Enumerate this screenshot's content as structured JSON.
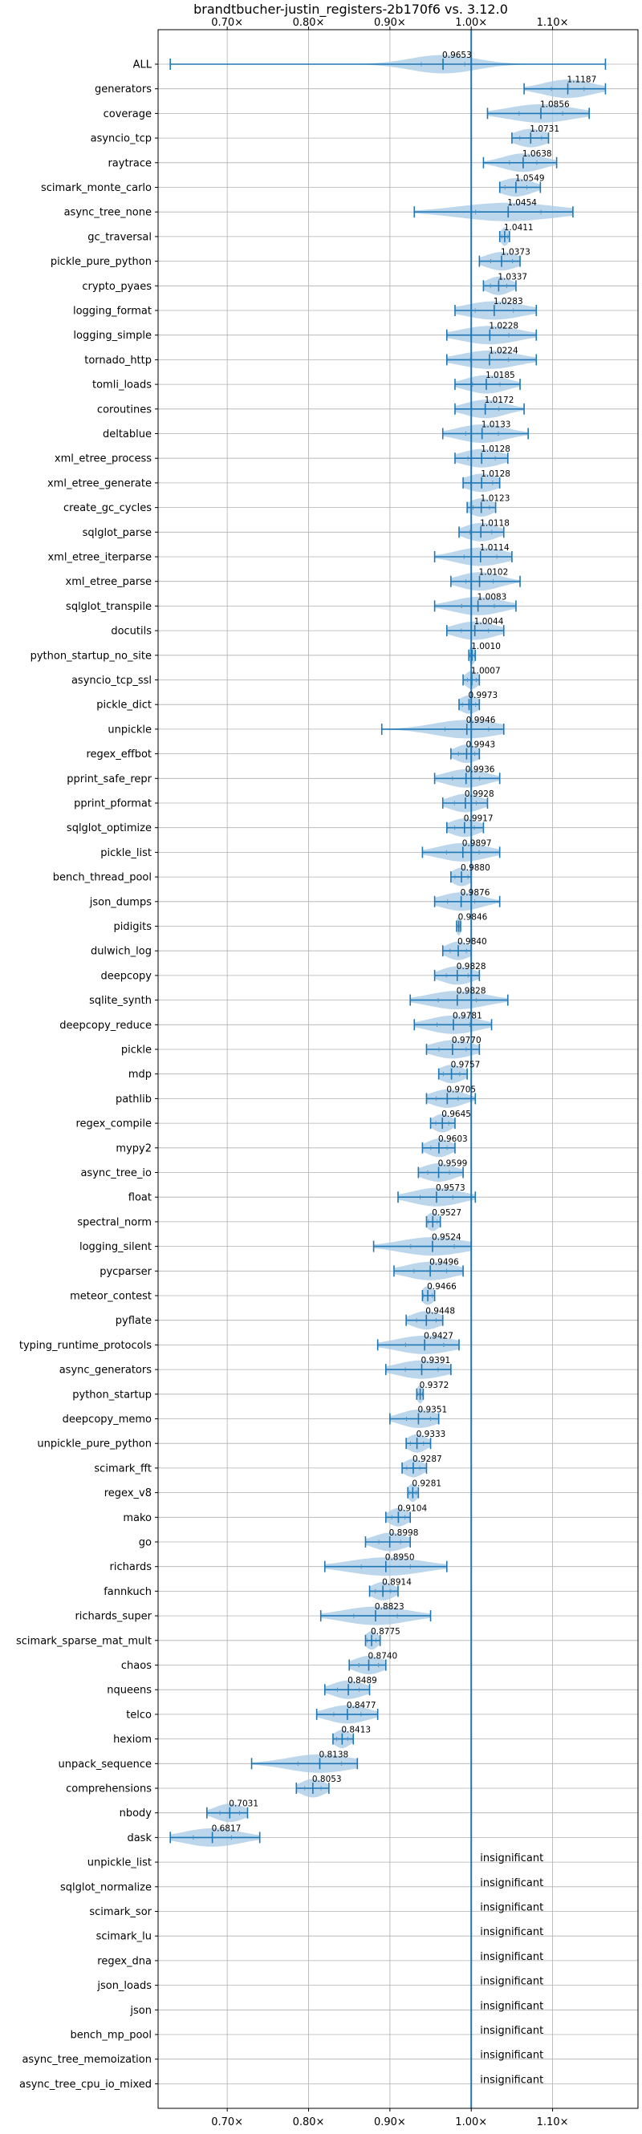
{
  "chart_data": {
    "type": "violin",
    "title": "brandtbucher-justin_registers-2b170f6 vs. 3.12.0",
    "xlim": [
      0.615,
      1.205
    ],
    "x_ticks": [
      0.7,
      0.8,
      0.9,
      1.0,
      1.1
    ],
    "x_tick_labels": [
      "0.70×",
      "0.80×",
      "0.90×",
      "1.00×",
      "1.10×"
    ],
    "reference_line": 1.0,
    "grid": true,
    "colors": {
      "line": "#1f77b4",
      "violin": "#a6c8e6",
      "grid": "#b0b0b0"
    },
    "benchmarks": [
      {
        "name": "ALL",
        "value": 0.9653,
        "label": "0.9653",
        "min": 0.63,
        "max": 1.165,
        "spread": 0.04
      },
      {
        "name": "generators",
        "value": 1.1187,
        "label": "1.1187",
        "min": 1.065,
        "max": 1.165,
        "spread": 0.03
      },
      {
        "name": "coverage",
        "value": 1.0856,
        "label": "1.0856",
        "min": 1.02,
        "max": 1.145,
        "spread": 0.04
      },
      {
        "name": "asyncio_tcp",
        "value": 1.0731,
        "label": "1.0731",
        "min": 1.05,
        "max": 1.095,
        "spread": 0.02
      },
      {
        "name": "raytrace",
        "value": 1.0638,
        "label": "1.0638",
        "min": 1.015,
        "max": 1.105,
        "spread": 0.025
      },
      {
        "name": "scimark_monte_carlo",
        "value": 1.0549,
        "label": "1.0549",
        "min": 1.035,
        "max": 1.085,
        "spread": 0.02
      },
      {
        "name": "async_tree_none",
        "value": 1.0454,
        "label": "1.0454",
        "min": 0.93,
        "max": 1.125,
        "spread": 0.06
      },
      {
        "name": "gc_traversal",
        "value": 1.0411,
        "label": "1.0411",
        "min": 1.035,
        "max": 1.047,
        "spread": 0.005
      },
      {
        "name": "pickle_pure_python",
        "value": 1.0373,
        "label": "1.0373",
        "min": 1.01,
        "max": 1.06,
        "spread": 0.02
      },
      {
        "name": "crypto_pyaes",
        "value": 1.0337,
        "label": "1.0337",
        "min": 1.015,
        "max": 1.055,
        "spread": 0.015
      },
      {
        "name": "logging_format",
        "value": 1.0283,
        "label": "1.0283",
        "min": 0.98,
        "max": 1.08,
        "spread": 0.035
      },
      {
        "name": "logging_simple",
        "value": 1.0228,
        "label": "1.0228",
        "min": 0.97,
        "max": 1.08,
        "spread": 0.035
      },
      {
        "name": "tornado_http",
        "value": 1.0224,
        "label": "1.0224",
        "min": 0.97,
        "max": 1.08,
        "spread": 0.035
      },
      {
        "name": "tomli_loads",
        "value": 1.0185,
        "label": "1.0185",
        "min": 0.98,
        "max": 1.06,
        "spread": 0.025
      },
      {
        "name": "coroutines",
        "value": 1.0172,
        "label": "1.0172",
        "min": 0.98,
        "max": 1.065,
        "spread": 0.025
      },
      {
        "name": "deltablue",
        "value": 1.0133,
        "label": "1.0133",
        "min": 0.965,
        "max": 1.07,
        "spread": 0.03
      },
      {
        "name": "xml_etree_process",
        "value": 1.0128,
        "label": "1.0128",
        "min": 0.98,
        "max": 1.045,
        "spread": 0.025
      },
      {
        "name": "xml_etree_generate",
        "value": 1.0128,
        "label": "1.0128",
        "min": 0.99,
        "max": 1.035,
        "spread": 0.02
      },
      {
        "name": "create_gc_cycles",
        "value": 1.0123,
        "label": "1.0123",
        "min": 0.995,
        "max": 1.03,
        "spread": 0.015
      },
      {
        "name": "sqlglot_parse",
        "value": 1.0118,
        "label": "1.0118",
        "min": 0.985,
        "max": 1.04,
        "spread": 0.02
      },
      {
        "name": "xml_etree_iterparse",
        "value": 1.0114,
        "label": "1.0114",
        "min": 0.955,
        "max": 1.05,
        "spread": 0.03
      },
      {
        "name": "xml_etree_parse",
        "value": 1.0102,
        "label": "1.0102",
        "min": 0.975,
        "max": 1.06,
        "spread": 0.025
      },
      {
        "name": "sqlglot_transpile",
        "value": 1.0083,
        "label": "1.0083",
        "min": 0.955,
        "max": 1.055,
        "spread": 0.03
      },
      {
        "name": "docutils",
        "value": 1.0044,
        "label": "1.0044",
        "min": 0.97,
        "max": 1.04,
        "spread": 0.025
      },
      {
        "name": "python_startup_no_site",
        "value": 1.001,
        "label": "1.0010",
        "min": 0.997,
        "max": 1.005,
        "spread": 0.004
      },
      {
        "name": "asyncio_tcp_ssl",
        "value": 1.0007,
        "label": "1.0007",
        "min": 0.99,
        "max": 1.01,
        "spread": 0.008
      },
      {
        "name": "pickle_dict",
        "value": 0.9973,
        "label": "0.9973",
        "min": 0.985,
        "max": 1.01,
        "spread": 0.012
      },
      {
        "name": "unpickle",
        "value": 0.9946,
        "label": "0.9946",
        "min": 0.89,
        "max": 1.04,
        "spread": 0.04
      },
      {
        "name": "regex_effbot",
        "value": 0.9943,
        "label": "0.9943",
        "min": 0.975,
        "max": 1.01,
        "spread": 0.015
      },
      {
        "name": "pprint_safe_repr",
        "value": 0.9936,
        "label": "0.9936",
        "min": 0.955,
        "max": 1.035,
        "spread": 0.025
      },
      {
        "name": "pprint_pformat",
        "value": 0.9928,
        "label": "0.9928",
        "min": 0.965,
        "max": 1.02,
        "spread": 0.02
      },
      {
        "name": "sqlglot_optimize",
        "value": 0.9917,
        "label": "0.9917",
        "min": 0.97,
        "max": 1.015,
        "spread": 0.018
      },
      {
        "name": "pickle_list",
        "value": 0.9897,
        "label": "0.9897",
        "min": 0.94,
        "max": 1.035,
        "spread": 0.03
      },
      {
        "name": "bench_thread_pool",
        "value": 0.988,
        "label": "0.9880",
        "min": 0.975,
        "max": 1.0,
        "spread": 0.012
      },
      {
        "name": "json_dumps",
        "value": 0.9876,
        "label": "0.9876",
        "min": 0.955,
        "max": 1.035,
        "spread": 0.025
      },
      {
        "name": "pidigits",
        "value": 0.9846,
        "label": "0.9846",
        "min": 0.982,
        "max": 0.987,
        "spread": 0.003
      },
      {
        "name": "dulwich_log",
        "value": 0.984,
        "label": "0.9840",
        "min": 0.965,
        "max": 1.0,
        "spread": 0.015
      },
      {
        "name": "deepcopy",
        "value": 0.9828,
        "label": "0.9828",
        "min": 0.955,
        "max": 1.01,
        "spread": 0.02
      },
      {
        "name": "sqlite_synth",
        "value": 0.9828,
        "label": "0.9828",
        "min": 0.925,
        "max": 1.045,
        "spread": 0.035
      },
      {
        "name": "deepcopy_reduce",
        "value": 0.9781,
        "label": "0.9781",
        "min": 0.93,
        "max": 1.025,
        "spread": 0.03
      },
      {
        "name": "pickle",
        "value": 0.977,
        "label": "0.9770",
        "min": 0.945,
        "max": 1.01,
        "spread": 0.025
      },
      {
        "name": "mdp",
        "value": 0.9757,
        "label": "0.9757",
        "min": 0.96,
        "max": 0.995,
        "spread": 0.015
      },
      {
        "name": "pathlib",
        "value": 0.9705,
        "label": "0.9705",
        "min": 0.945,
        "max": 1.005,
        "spread": 0.02
      },
      {
        "name": "regex_compile",
        "value": 0.9645,
        "label": "0.9645",
        "min": 0.95,
        "max": 0.98,
        "spread": 0.012
      },
      {
        "name": "mypy2",
        "value": 0.9603,
        "label": "0.9603",
        "min": 0.94,
        "max": 0.98,
        "spread": 0.015
      },
      {
        "name": "async_tree_io",
        "value": 0.9599,
        "label": "0.9599",
        "min": 0.935,
        "max": 0.99,
        "spread": 0.02
      },
      {
        "name": "float",
        "value": 0.9573,
        "label": "0.9573",
        "min": 0.91,
        "max": 1.005,
        "spread": 0.03
      },
      {
        "name": "spectral_norm",
        "value": 0.9527,
        "label": "0.9527",
        "min": 0.945,
        "max": 0.962,
        "spread": 0.008
      },
      {
        "name": "logging_silent",
        "value": 0.9524,
        "label": "0.9524",
        "min": 0.88,
        "max": 1.0,
        "spread": 0.04
      },
      {
        "name": "pycparser",
        "value": 0.9496,
        "label": "0.9496",
        "min": 0.905,
        "max": 0.99,
        "spread": 0.03
      },
      {
        "name": "meteor_contest",
        "value": 0.9466,
        "label": "0.9466",
        "min": 0.94,
        "max": 0.955,
        "spread": 0.008
      },
      {
        "name": "pyflate",
        "value": 0.9448,
        "label": "0.9448",
        "min": 0.92,
        "max": 0.965,
        "spread": 0.018
      },
      {
        "name": "typing_runtime_protocols",
        "value": 0.9427,
        "label": "0.9427",
        "min": 0.885,
        "max": 0.985,
        "spread": 0.035
      },
      {
        "name": "async_generators",
        "value": 0.9391,
        "label": "0.9391",
        "min": 0.895,
        "max": 0.975,
        "spread": 0.03
      },
      {
        "name": "python_startup",
        "value": 0.9372,
        "label": "0.9372",
        "min": 0.933,
        "max": 0.941,
        "spread": 0.004
      },
      {
        "name": "deepcopy_memo",
        "value": 0.9351,
        "label": "0.9351",
        "min": 0.9,
        "max": 0.96,
        "spread": 0.022
      },
      {
        "name": "unpickle_pure_python",
        "value": 0.9333,
        "label": "0.9333",
        "min": 0.92,
        "max": 0.95,
        "spread": 0.012
      },
      {
        "name": "scimark_fft",
        "value": 0.9287,
        "label": "0.9287",
        "min": 0.915,
        "max": 0.945,
        "spread": 0.012
      },
      {
        "name": "regex_v8",
        "value": 0.9281,
        "label": "0.9281",
        "min": 0.922,
        "max": 0.935,
        "spread": 0.006
      },
      {
        "name": "mako",
        "value": 0.9104,
        "label": "0.9104",
        "min": 0.895,
        "max": 0.925,
        "spread": 0.012
      },
      {
        "name": "go",
        "value": 0.8998,
        "label": "0.8998",
        "min": 0.87,
        "max": 0.925,
        "spread": 0.02
      },
      {
        "name": "richards",
        "value": 0.895,
        "label": "0.8950",
        "min": 0.82,
        "max": 0.97,
        "spread": 0.045
      },
      {
        "name": "fannkuch",
        "value": 0.8914,
        "label": "0.8914",
        "min": 0.875,
        "max": 0.91,
        "spread": 0.014
      },
      {
        "name": "richards_super",
        "value": 0.8823,
        "label": "0.8823",
        "min": 0.815,
        "max": 0.95,
        "spread": 0.04
      },
      {
        "name": "scimark_sparse_mat_mult",
        "value": 0.8775,
        "label": "0.8775",
        "min": 0.87,
        "max": 0.888,
        "spread": 0.008
      },
      {
        "name": "chaos",
        "value": 0.874,
        "label": "0.8740",
        "min": 0.85,
        "max": 0.895,
        "spread": 0.018
      },
      {
        "name": "nqueens",
        "value": 0.8489,
        "label": "0.8489",
        "min": 0.82,
        "max": 0.875,
        "spread": 0.02
      },
      {
        "name": "telco",
        "value": 0.8477,
        "label": "0.8477",
        "min": 0.81,
        "max": 0.885,
        "spread": 0.025
      },
      {
        "name": "hexiom",
        "value": 0.8413,
        "label": "0.8413",
        "min": 0.83,
        "max": 0.855,
        "spread": 0.01
      },
      {
        "name": "unpack_sequence",
        "value": 0.8138,
        "label": "0.8138",
        "min": 0.73,
        "max": 0.86,
        "spread": 0.04
      },
      {
        "name": "comprehensions",
        "value": 0.8053,
        "label": "0.8053",
        "min": 0.785,
        "max": 0.825,
        "spread": 0.015
      },
      {
        "name": "nbody",
        "value": 0.7031,
        "label": "0.7031",
        "min": 0.675,
        "max": 0.725,
        "spread": 0.018
      },
      {
        "name": "dask",
        "value": 0.6817,
        "label": "0.6817",
        "min": 0.63,
        "max": 0.74,
        "spread": 0.035
      }
    ],
    "insignificant": {
      "label": "insignificant",
      "names": [
        "unpickle_list",
        "sqlglot_normalize",
        "scimark_sor",
        "scimark_lu",
        "regex_dna",
        "json_loads",
        "json",
        "bench_mp_pool",
        "async_tree_memoization",
        "async_tree_cpu_io_mixed"
      ]
    }
  }
}
